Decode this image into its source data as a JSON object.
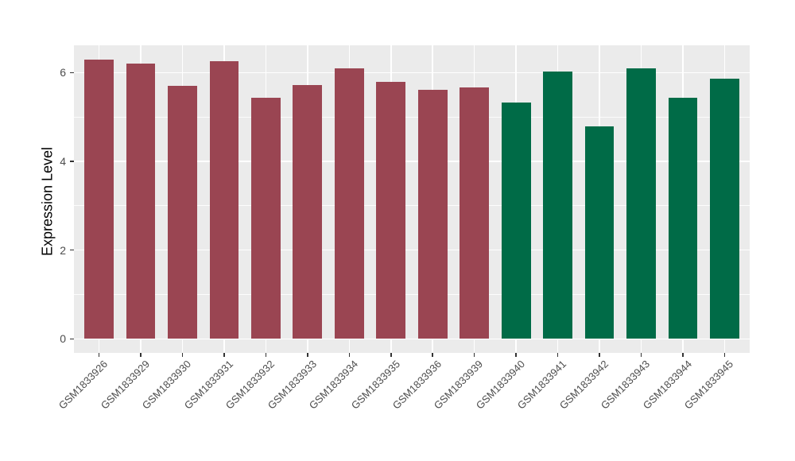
{
  "figure": {
    "background": "#FFFFFF",
    "panel_background": "#EBEBEB",
    "gridline_color": "#FFFFFF",
    "tick_mark_color": "#333333",
    "axis_text_color": "#4D4D4D",
    "axis_title_color": "#000000"
  },
  "chart_data": {
    "type": "bar",
    "title": "",
    "xlabel": "",
    "ylabel": "Expression Level",
    "ylim": [
      0,
      6.3
    ],
    "y_expansion": 0.05,
    "yticks": [
      0,
      2,
      4,
      6
    ],
    "yticks_minor": [
      1,
      3,
      5
    ],
    "grid": "on",
    "legend_position": "none",
    "x_tick_label_angle": 45,
    "categories": [
      "GSM1833926",
      "GSM1833929",
      "GSM1833930",
      "GSM1833931",
      "GSM1833932",
      "GSM1833933",
      "GSM1833934",
      "GSM1833935",
      "GSM1833936",
      "GSM1833939",
      "GSM1833940",
      "GSM1833941",
      "GSM1833942",
      "GSM1833943",
      "GSM1833944",
      "GSM1833945"
    ],
    "values": [
      6.3,
      6.2,
      5.7,
      6.26,
      5.43,
      5.72,
      6.09,
      5.8,
      5.62,
      5.66,
      5.32,
      6.02,
      4.78,
      6.09,
      5.44,
      5.86
    ],
    "bar_groups": [
      {
        "name": "maroon-group",
        "fill": "#9A4552",
        "count": 10
      },
      {
        "name": "green-group",
        "fill": "#006B47",
        "count": 6
      }
    ]
  }
}
